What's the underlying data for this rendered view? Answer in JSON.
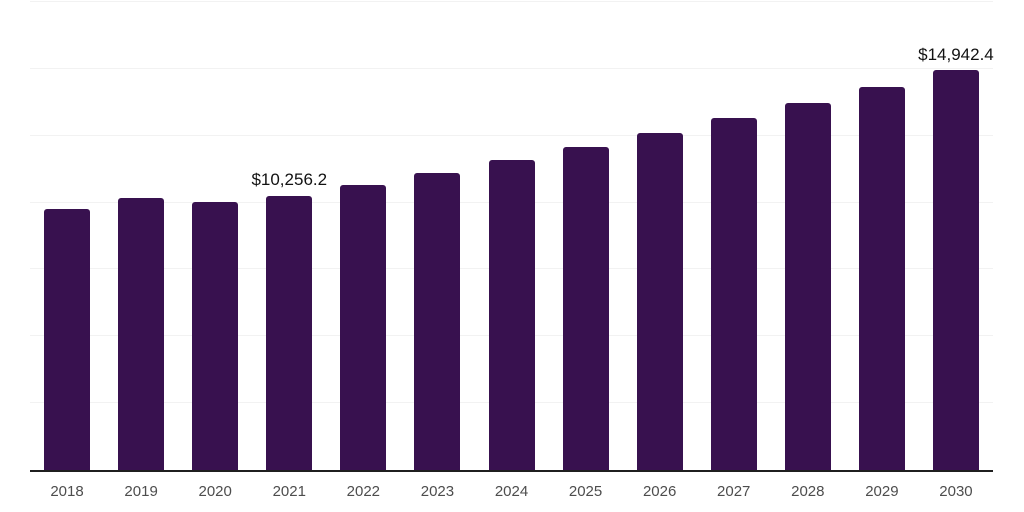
{
  "page": {
    "background": "#ffffff"
  },
  "chart_data": {
    "type": "bar",
    "title": "",
    "xlabel": "",
    "ylabel": "",
    "categories": [
      "2018",
      "2019",
      "2020",
      "2021",
      "2022",
      "2023",
      "2024",
      "2025",
      "2026",
      "2027",
      "2028",
      "2029",
      "2030"
    ],
    "values": [
      9770,
      10180,
      10030,
      10256.2,
      10650,
      11110,
      11600,
      12080,
      12600,
      13170,
      13730,
      14320,
      14942.4
    ],
    "data_labels": [
      {
        "category": "2021",
        "text": "$10,256.2"
      },
      {
        "category": "2030",
        "text": "$14,942.4"
      }
    ],
    "ylim": [
      0,
      17500
    ],
    "grid_step": 2500,
    "grid": "horizontal-only",
    "y_tick_labels": "none",
    "legend": "none",
    "colors": {
      "bar": "#38114F",
      "gridline": "#f2f2f2",
      "axis": "#1f1f1f",
      "tick_label": "#4d4d4d",
      "data_label": "#121212",
      "background": "#ffffff"
    }
  }
}
